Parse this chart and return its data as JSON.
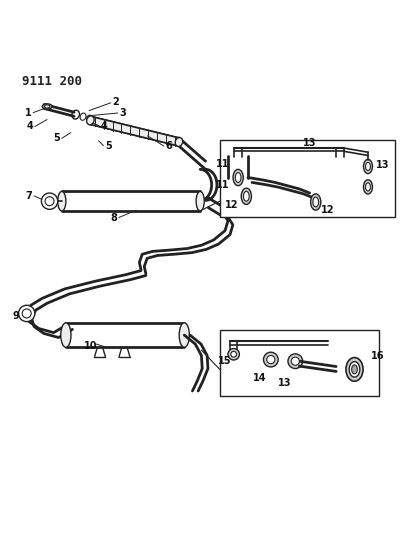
{
  "title_code": "9111 200",
  "bg_color": "#ffffff",
  "line_color": "#222222",
  "fig_width": 4.11,
  "fig_height": 5.33,
  "dpi": 100
}
